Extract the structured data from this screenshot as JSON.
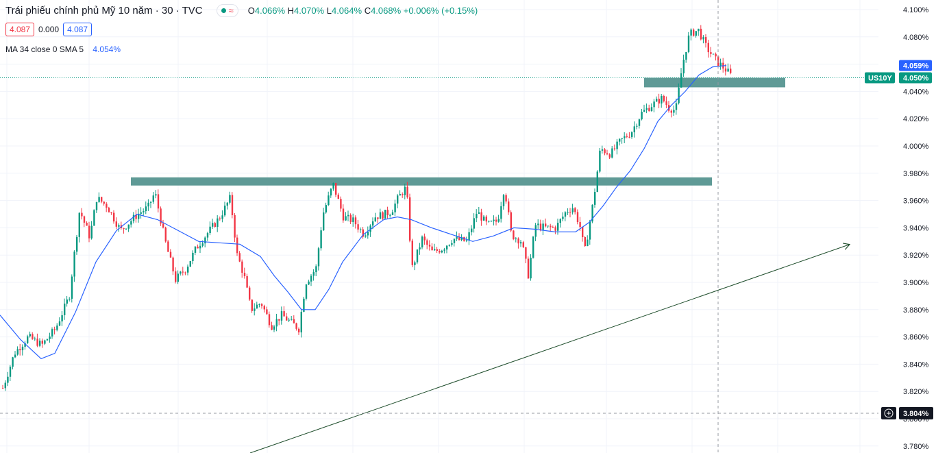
{
  "header": {
    "title": "Trái phiếu chính phủ Mỹ 10 năm · 30 · TVC",
    "approx_symbol": "≈",
    "ohlc": {
      "o_label": "O",
      "o": "4.066%",
      "h_label": "H",
      "h": "4.070%",
      "l_label": "L",
      "l": "4.064%",
      "c_label": "C",
      "c": "4.068%",
      "change": "+0.006% (+0.15%)"
    },
    "bid": "4.087",
    "spread": "0.000",
    "ask": "4.087",
    "ma_label": "MA 34 close 0 SMA 5",
    "ma_value": "4.054%"
  },
  "price_axis": {
    "ma_badge": "4.059%",
    "symbol_badge": "US10Y",
    "price_badge": "4.050%",
    "crosshair_badge": "3.804%",
    "plus_icon": "plus-circle-icon"
  },
  "colors": {
    "up": "#089981",
    "down": "#f23645",
    "ma": "#2962ff",
    "zone": "#5f9a96",
    "trendline": "#1e4d2b"
  },
  "chart_data": {
    "type": "candlestick",
    "symbol": "US10Y",
    "interval": "30",
    "ylim": [
      3.775,
      4.105
    ],
    "y_ticks": [
      "4.100%",
      "4.080%",
      "4.060%",
      "4.040%",
      "4.020%",
      "4.000%",
      "3.980%",
      "3.960%",
      "3.940%",
      "3.920%",
      "3.900%",
      "3.880%",
      "3.860%",
      "3.840%",
      "3.820%",
      "3.800%",
      "3.780%"
    ],
    "price_path": [
      [
        0,
        3.818
      ],
      [
        20,
        3.848
      ],
      [
        40,
        3.86
      ],
      [
        60,
        3.854
      ],
      [
        80,
        3.866
      ],
      [
        100,
        3.89
      ],
      [
        115,
        3.953
      ],
      [
        130,
        3.933
      ],
      [
        140,
        3.962
      ],
      [
        155,
        3.956
      ],
      [
        175,
        3.938
      ],
      [
        200,
        3.95
      ],
      [
        215,
        3.955
      ],
      [
        225,
        3.966
      ],
      [
        240,
        3.93
      ],
      [
        255,
        3.902
      ],
      [
        270,
        3.91
      ],
      [
        285,
        3.925
      ],
      [
        300,
        3.935
      ],
      [
        320,
        3.948
      ],
      [
        335,
        3.962
      ],
      [
        345,
        3.92
      ],
      [
        355,
        3.905
      ],
      [
        365,
        3.88
      ],
      [
        380,
        3.885
      ],
      [
        395,
        3.868
      ],
      [
        410,
        3.876
      ],
      [
        425,
        3.87
      ],
      [
        435,
        3.866
      ],
      [
        445,
        3.9
      ],
      [
        460,
        3.91
      ],
      [
        470,
        3.95
      ],
      [
        485,
        3.972
      ],
      [
        500,
        3.948
      ],
      [
        515,
        3.945
      ],
      [
        530,
        3.935
      ],
      [
        545,
        3.948
      ],
      [
        560,
        3.95
      ],
      [
        570,
        3.952
      ],
      [
        580,
        3.962
      ],
      [
        592,
        3.97
      ],
      [
        600,
        3.91
      ],
      [
        615,
        3.932
      ],
      [
        630,
        3.922
      ],
      [
        645,
        3.925
      ],
      [
        660,
        3.932
      ],
      [
        680,
        3.93
      ],
      [
        695,
        3.952
      ],
      [
        710,
        3.942
      ],
      [
        725,
        3.945
      ],
      [
        735,
        3.97
      ],
      [
        745,
        3.935
      ],
      [
        760,
        3.93
      ],
      [
        770,
        3.905
      ],
      [
        780,
        3.942
      ],
      [
        795,
        3.94
      ],
      [
        810,
        3.94
      ],
      [
        825,
        3.952
      ],
      [
        835,
        3.955
      ],
      [
        845,
        3.942
      ],
      [
        852,
        3.922
      ],
      [
        865,
        3.96
      ],
      [
        875,
        3.998
      ],
      [
        890,
        3.994
      ],
      [
        905,
        4.004
      ],
      [
        920,
        4.01
      ],
      [
        935,
        4.024
      ],
      [
        950,
        4.03
      ],
      [
        965,
        4.035
      ],
      [
        975,
        4.028
      ],
      [
        985,
        4.026
      ],
      [
        995,
        4.06
      ],
      [
        1005,
        4.082
      ],
      [
        1018,
        4.085
      ],
      [
        1030,
        4.072
      ],
      [
        1045,
        4.062
      ],
      [
        1060,
        4.055
      ],
      [
        1065,
        4.052
      ]
    ],
    "ma_path": [
      [
        0,
        3.876
      ],
      [
        30,
        3.858
      ],
      [
        60,
        3.844
      ],
      [
        80,
        3.848
      ],
      [
        110,
        3.878
      ],
      [
        140,
        3.915
      ],
      [
        170,
        3.938
      ],
      [
        200,
        3.95
      ],
      [
        230,
        3.946
      ],
      [
        260,
        3.938
      ],
      [
        290,
        3.93
      ],
      [
        320,
        3.929
      ],
      [
        350,
        3.928
      ],
      [
        380,
        3.919
      ],
      [
        400,
        3.905
      ],
      [
        420,
        3.893
      ],
      [
        440,
        3.88
      ],
      [
        460,
        3.88
      ],
      [
        480,
        3.895
      ],
      [
        500,
        3.915
      ],
      [
        530,
        3.935
      ],
      [
        560,
        3.946
      ],
      [
        580,
        3.948
      ],
      [
        600,
        3.946
      ],
      [
        630,
        3.94
      ],
      [
        660,
        3.935
      ],
      [
        690,
        3.93
      ],
      [
        720,
        3.934
      ],
      [
        750,
        3.94
      ],
      [
        780,
        3.939
      ],
      [
        810,
        3.937
      ],
      [
        840,
        3.937
      ],
      [
        860,
        3.944
      ],
      [
        880,
        3.956
      ],
      [
        900,
        3.97
      ],
      [
        920,
        3.982
      ],
      [
        940,
        3.998
      ],
      [
        960,
        4.018
      ],
      [
        980,
        4.03
      ],
      [
        1000,
        4.04
      ],
      [
        1020,
        4.052
      ],
      [
        1040,
        4.058
      ],
      [
        1060,
        4.059
      ]
    ],
    "resistance_zone_1": {
      "y_top": 3.977,
      "y_bottom": 3.971
    },
    "resistance_zone_2": {
      "y_top": 4.05,
      "y_bottom": 4.043
    },
    "trendline": {
      "y_start": 3.775,
      "y_end": 3.93
    },
    "current_price": 4.05,
    "crosshair_price": 3.804
  }
}
